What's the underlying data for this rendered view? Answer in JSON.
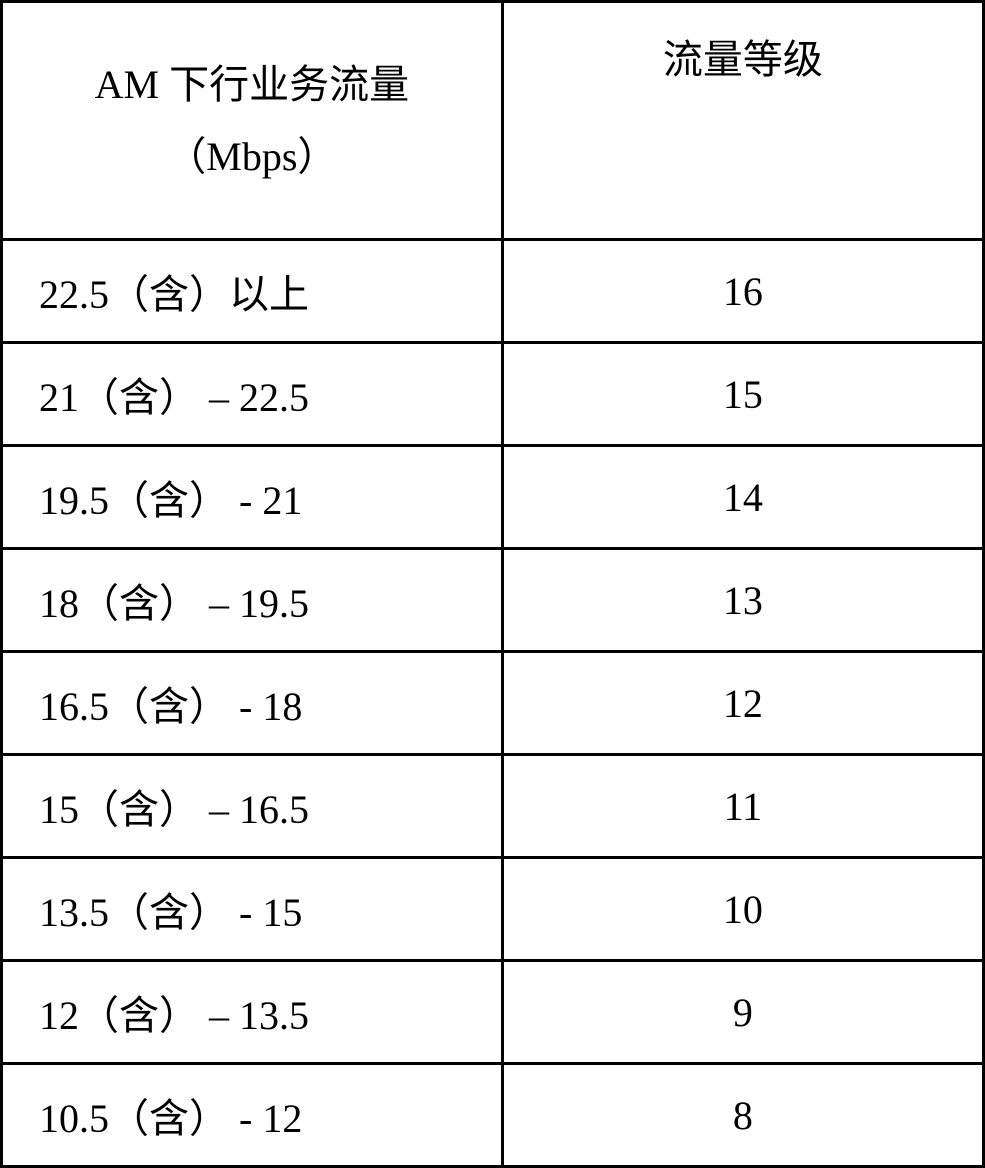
{
  "table": {
    "headers": {
      "left_line1": "AM 下行业务流量",
      "left_line2": "（Mbps）",
      "right": "流量等级"
    },
    "rows": [
      {
        "range": "22.5（含）以上",
        "level": "16"
      },
      {
        "range": "21（含） – 22.5",
        "level": "15"
      },
      {
        "range": "19.5（含） - 21",
        "level": "14"
      },
      {
        "range": "18（含） – 19.5",
        "level": "13"
      },
      {
        "range": "16.5（含） - 18",
        "level": "12"
      },
      {
        "range": "15（含） – 16.5",
        "level": "11"
      },
      {
        "range": "13.5（含） - 15",
        "level": "10"
      },
      {
        "range": "12（含） – 13.5",
        "level": "9"
      },
      {
        "range": "10.5（含） - 12",
        "level": "8"
      }
    ],
    "styling": {
      "border_color": "#000000",
      "border_width": 3,
      "background_color": "#ffffff",
      "text_color": "#000000",
      "font_family": "SimSun",
      "font_size": 40,
      "header_row_height": 195,
      "data_row_height": 100,
      "col_widths_pct": [
        50,
        50
      ],
      "left_col_align": "left",
      "right_col_align": "center",
      "left_col_padding_left": 36
    }
  }
}
